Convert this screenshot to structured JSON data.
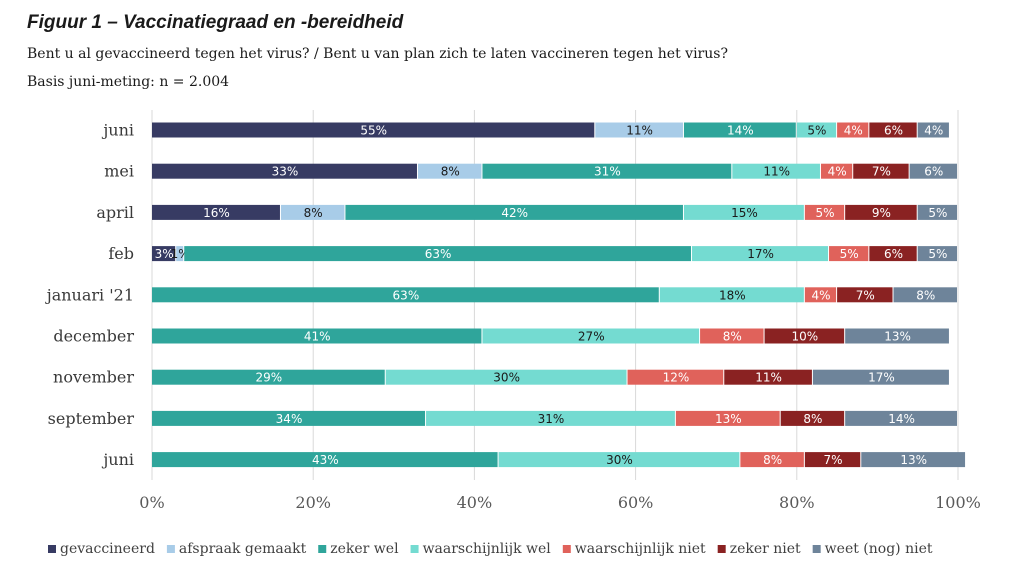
{
  "header": {
    "title": "Figuur 1 – Vaccinatiegraad en -bereidheid",
    "subtitle": "Bent u al gevaccineerd tegen het virus? / Bent u van plan zich te laten vaccineren tegen het virus?",
    "basis": "Basis juni-meting: n = 2.004"
  },
  "chart_data": {
    "type": "bar",
    "orientation": "horizontal",
    "stacked": true,
    "categories": [
      "juni",
      "mei",
      "april",
      "feb",
      "januari '21",
      "december",
      "november",
      "september",
      "juni"
    ],
    "series": [
      {
        "name": "gevaccineerd",
        "color": "#373b63",
        "label_color": "#ffffff",
        "values": [
          55,
          33,
          16,
          3,
          0,
          0,
          0,
          0,
          0
        ]
      },
      {
        "name": "afspraak gemaakt",
        "color": "#a8cce8",
        "label_color": "#1a1a1a",
        "values": [
          11,
          8,
          8,
          1,
          0,
          0,
          0,
          0,
          0
        ]
      },
      {
        "name": "zeker wel",
        "color": "#2fa59b",
        "label_color": "#ffffff",
        "values": [
          14,
          31,
          42,
          63,
          63,
          41,
          29,
          34,
          43
        ]
      },
      {
        "name": "waarschijnlijk wel",
        "color": "#74dbd1",
        "label_color": "#1a1a1a",
        "values": [
          5,
          11,
          15,
          17,
          18,
          27,
          30,
          31,
          30
        ]
      },
      {
        "name": "waarschijnlijk niet",
        "color": "#e0625b",
        "label_color": "#ffffff",
        "values": [
          4,
          4,
          5,
          5,
          4,
          8,
          12,
          13,
          8
        ]
      },
      {
        "name": "zeker niet",
        "color": "#8a2222",
        "label_color": "#ffffff",
        "values": [
          6,
          7,
          9,
          6,
          7,
          10,
          11,
          8,
          7
        ]
      },
      {
        "name": "weet (nog) niet",
        "color": "#6e849a",
        "label_color": "#ffffff",
        "values": [
          4,
          6,
          5,
          5,
          8,
          13,
          17,
          14,
          13
        ]
      }
    ],
    "xlim": [
      0,
      100
    ],
    "xticks": [
      "0%",
      "20%",
      "40%",
      "60%",
      "80%",
      "100%"
    ],
    "value_suffix": "%",
    "grid": true,
    "legend_position": "bottom"
  }
}
